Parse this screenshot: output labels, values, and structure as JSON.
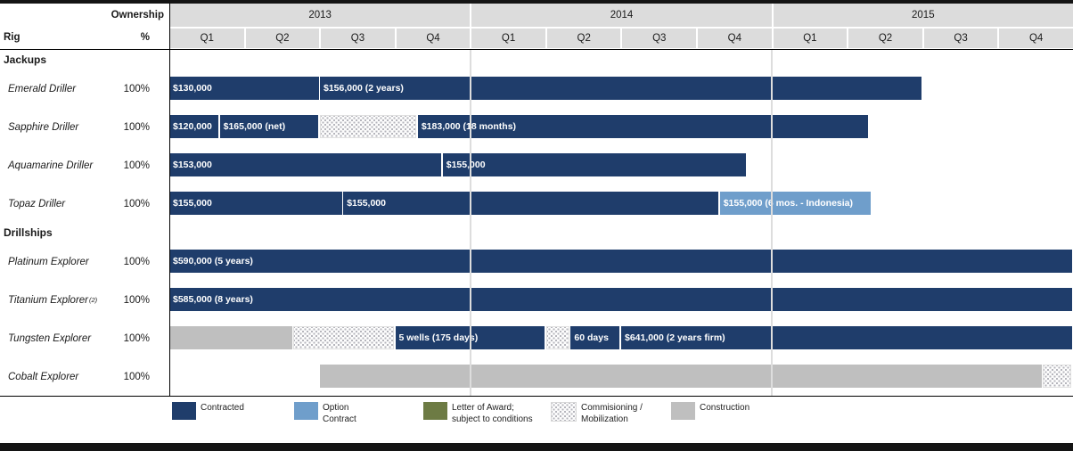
{
  "header": {
    "ownership_label": "Ownership",
    "rig_label": "Rig",
    "percent_label": "%",
    "years": [
      {
        "label": "2013",
        "quarters": [
          "Q1",
          "Q2",
          "Q3",
          "Q4"
        ]
      },
      {
        "label": "2014",
        "quarters": [
          "Q1",
          "Q2",
          "Q3",
          "Q4"
        ]
      },
      {
        "label": "2015",
        "quarters": [
          "Q1",
          "Q2",
          "Q3",
          "Q4"
        ]
      }
    ]
  },
  "colors": {
    "contracted": "#1f3d6b",
    "option": "#6f9ecb",
    "award": "#6d7b44",
    "construction": "#bfbfbf",
    "hatch_dot": "#b5b5bc",
    "header_bg": "#dcdcdc"
  },
  "chart_data": {
    "type": "bar",
    "subtype": "gantt",
    "x_unit": "quarters",
    "x_domain_years": [
      "2013",
      "2014",
      "2015"
    ],
    "x_range_quarters": [
      0,
      12
    ],
    "sections": [
      {
        "title": "Jackups",
        "rows": [
          {
            "name": "Emerald Driller",
            "ownership": "100%",
            "bars": [
              {
                "type": "contracted",
                "start": 0,
                "end": 2,
                "label": "$130,000"
              },
              {
                "type": "contracted",
                "start": 2,
                "end": 10,
                "label": "$156,000 (2 years)"
              }
            ]
          },
          {
            "name": "Sapphire Driller",
            "ownership": "100%",
            "bars": [
              {
                "type": "contracted",
                "start": 0,
                "end": 0.67,
                "label": "$120,000"
              },
              {
                "type": "contracted",
                "start": 0.67,
                "end": 2,
                "label": "$165,000 (net)"
              },
              {
                "type": "commissioning",
                "start": 2,
                "end": 3.3,
                "label": ""
              },
              {
                "type": "contracted",
                "start": 3.3,
                "end": 9.3,
                "label": "$183,000 (18 months)"
              }
            ]
          },
          {
            "name": "Aquamarine Driller",
            "ownership": "100%",
            "bars": [
              {
                "type": "contracted",
                "start": 0,
                "end": 3.63,
                "label": "$153,000"
              },
              {
                "type": "contracted",
                "start": 3.63,
                "end": 7.67,
                "label": "$155,000"
              }
            ]
          },
          {
            "name": "Topaz Driller",
            "ownership": "100%",
            "bars": [
              {
                "type": "contracted",
                "start": 0,
                "end": 2.31,
                "label": "$155,000"
              },
              {
                "type": "contracted",
                "start": 2.31,
                "end": 7.31,
                "label": "$155,000"
              },
              {
                "type": "option",
                "start": 7.31,
                "end": 9.33,
                "label": "$155,000 (6 mos. - Indonesia)"
              }
            ]
          }
        ]
      },
      {
        "title": "Drillships",
        "rows": [
          {
            "name": "Platinum Explorer",
            "ownership": "100%",
            "bars": [
              {
                "type": "contracted",
                "start": 0,
                "end": 12,
                "label": "$590,000 (5 years)"
              }
            ]
          },
          {
            "name": "Titanium Explorer",
            "sup": "(2)",
            "ownership": "100%",
            "bars": [
              {
                "type": "contracted",
                "start": 0,
                "end": 12,
                "label": "$585,000 (8 years)"
              }
            ]
          },
          {
            "name": "Tungsten Explorer",
            "ownership": "100%",
            "bars": [
              {
                "type": "construction",
                "start": 0,
                "end": 1.65,
                "label": ""
              },
              {
                "type": "commissioning",
                "start": 1.65,
                "end": 3,
                "label": ""
              },
              {
                "type": "contracted",
                "start": 3,
                "end": 5,
                "label": "5 wells (175 days)"
              },
              {
                "type": "commissioning",
                "start": 5,
                "end": 5.33,
                "label": ""
              },
              {
                "type": "contracted",
                "start": 5.33,
                "end": 6,
                "label": "60 days"
              },
              {
                "type": "contracted",
                "start": 6,
                "end": 12,
                "label": "$641,000 (2 years firm)"
              }
            ]
          },
          {
            "name": "Cobalt Explorer",
            "ownership": "100%",
            "bars": [
              {
                "type": "construction",
                "start": 2,
                "end": 11.6,
                "label": ""
              },
              {
                "type": "commissioning",
                "start": 11.6,
                "end": 12,
                "label": ""
              }
            ]
          }
        ]
      }
    ]
  },
  "legend": [
    {
      "type": "contracted",
      "label": "Contracted"
    },
    {
      "type": "option",
      "label": "Option\nContract"
    },
    {
      "type": "award",
      "label": "Letter of Award;\nsubject to conditions"
    },
    {
      "type": "commissioning",
      "label": "Commisioning /\nMobilization"
    },
    {
      "type": "construction",
      "label": "Construction"
    }
  ]
}
